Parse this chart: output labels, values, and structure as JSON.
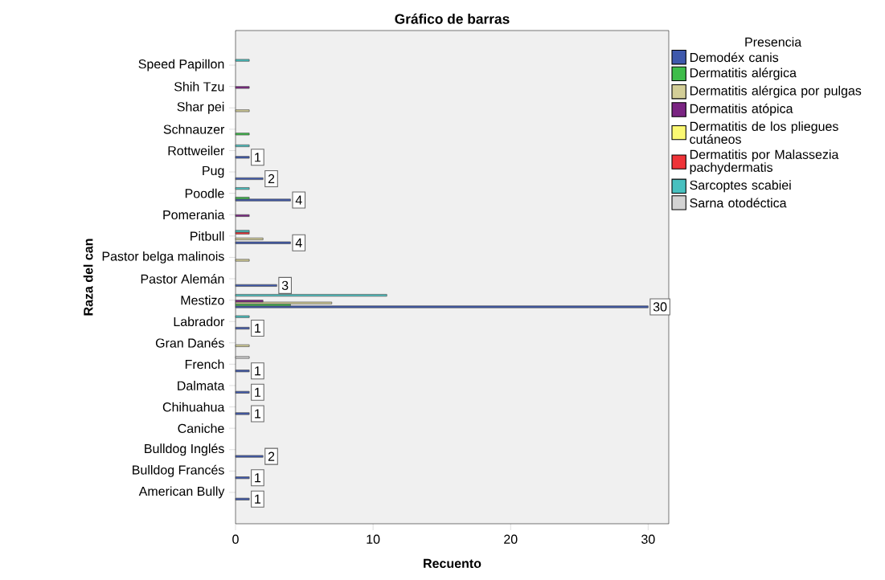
{
  "chart_data": {
    "type": "bar",
    "orientation": "horizontal",
    "title": "Gráfico de barras",
    "xlabel": "Recuento",
    "ylabel": "Raza del can",
    "legend_title": "Presencia",
    "legend": "right",
    "categories": [
      "Speed Papillon",
      "Shih Tzu",
      "Shar pei",
      "Schnauzer",
      "Rottweiler",
      "Pug",
      "Poodle",
      "Pomerania",
      "Pitbull",
      "Pastor belga malinois",
      "Pastor Alemán",
      "Mestizo",
      "Labrador",
      "Gran Danés",
      "French",
      "Dalmata",
      "Chihuahua",
      "Caniche",
      "Bulldog Inglés",
      "Bulldog Francés",
      "American Bully"
    ],
    "xlim": [
      0,
      31.5
    ],
    "xticks": [
      0,
      10,
      20,
      30
    ],
    "series": [
      {
        "name": "Demodéx canis",
        "color": "#3e58ac",
        "values": [
          null,
          null,
          null,
          null,
          1,
          2,
          4,
          null,
          4,
          null,
          3,
          30,
          1,
          null,
          1,
          1,
          1,
          null,
          2,
          1,
          1
        ],
        "value_labels": [
          null,
          null,
          null,
          null,
          "1",
          "2",
          "4",
          null,
          "4",
          null,
          "3",
          "30",
          "1",
          null,
          "1",
          "1",
          "1",
          null,
          "2",
          "1",
          "1"
        ]
      },
      {
        "name": "Dermatitis alérgica",
        "color": "#3ebc4a",
        "values": [
          null,
          null,
          null,
          1,
          null,
          null,
          1,
          null,
          null,
          null,
          null,
          4,
          null,
          null,
          null,
          null,
          null,
          null,
          null,
          null,
          null
        ]
      },
      {
        "name": "Dermatitis alérgica por pulgas",
        "color": "#d3ce97",
        "values": [
          null,
          null,
          1,
          null,
          null,
          null,
          null,
          null,
          2,
          1,
          null,
          7,
          null,
          1,
          null,
          null,
          null,
          null,
          null,
          null,
          null
        ]
      },
      {
        "name": "Dermatitis atópica",
        "color": "#7a2482",
        "values": [
          null,
          1,
          null,
          null,
          null,
          null,
          null,
          1,
          null,
          null,
          null,
          2,
          null,
          null,
          null,
          null,
          null,
          null,
          null,
          null,
          null
        ]
      },
      {
        "name": "Dermatitis de los pliegues cutáneos",
        "color": "#fbf873",
        "values": [
          null,
          null,
          null,
          null,
          null,
          null,
          null,
          null,
          null,
          null,
          null,
          null,
          null,
          null,
          null,
          null,
          null,
          null,
          null,
          null,
          null
        ]
      },
      {
        "name": "Dermatitis por Malassezia pachydermatis",
        "color": "#ef3338",
        "values": [
          null,
          null,
          null,
          null,
          null,
          null,
          null,
          null,
          1,
          null,
          null,
          null,
          null,
          null,
          null,
          null,
          null,
          null,
          null,
          null,
          null
        ]
      },
      {
        "name": "Sarcoptes scabiei",
        "color": "#48c0bf",
        "values": [
          1,
          null,
          null,
          null,
          1,
          null,
          1,
          null,
          1,
          null,
          null,
          11,
          1,
          null,
          null,
          null,
          null,
          null,
          null,
          null,
          null
        ]
      },
      {
        "name": "Sarna otodéctica",
        "color": "#d3d3d3",
        "values": [
          null,
          null,
          null,
          null,
          null,
          null,
          null,
          null,
          null,
          null,
          null,
          null,
          null,
          null,
          1,
          null,
          null,
          null,
          null,
          null,
          null
        ]
      }
    ]
  }
}
